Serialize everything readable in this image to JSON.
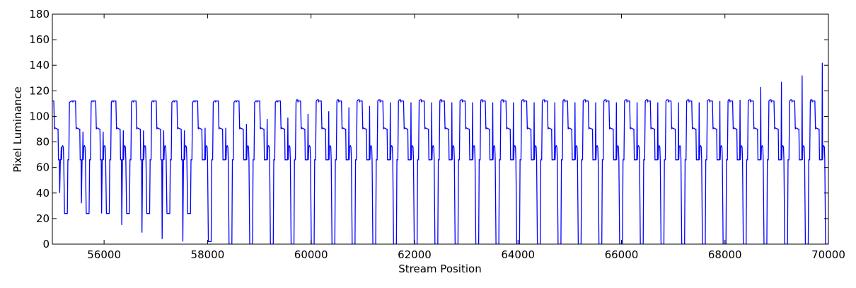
{
  "chart_data": {
    "type": "line",
    "title": "",
    "xlabel": "Stream Position",
    "ylabel": "Pixel Luminance",
    "xlim": [
      55000,
      70000
    ],
    "ylim": [
      0,
      180
    ],
    "x_ticks": [
      56000,
      58000,
      60000,
      62000,
      64000,
      66000,
      68000,
      70000
    ],
    "x_tick_labels": [
      "56000",
      "58000",
      "60000",
      "62000",
      "64000",
      "66000",
      "68000",
      "70000"
    ],
    "y_ticks": [
      0,
      20,
      40,
      60,
      80,
      100,
      120,
      140,
      160,
      180
    ],
    "y_tick_labels": [
      "0",
      "20",
      "40",
      "60",
      "80",
      "100",
      "120",
      "140",
      "160",
      "180"
    ],
    "grid": false,
    "legend": "none",
    "line_color": "#0000ff",
    "series": [
      {
        "cycle_start_x": [
          54950,
          55370,
          55760,
          56150,
          56540,
          56930,
          57330,
          57730,
          58130,
          58530,
          58930,
          59330,
          59720,
          60120,
          60510,
          60910,
          61310,
          61710,
          62110,
          62500,
          62900,
          63290,
          63690,
          64090,
          64490,
          64880,
          65280,
          65680,
          66080,
          66480,
          66880,
          67280,
          67680,
          68070,
          68470,
          68870,
          69270,
          69660
        ],
        "cycle_min": [
          24,
          24,
          24,
          24,
          24,
          24,
          24,
          2,
          0,
          0,
          0,
          0,
          0,
          0,
          0,
          0,
          0,
          0,
          0,
          0,
          0,
          0,
          0,
          0,
          0,
          0,
          0,
          0,
          0,
          0,
          0,
          0,
          0,
          0,
          0,
          0,
          0,
          0
        ],
        "cycle_peak": [
          76,
          88,
          88,
          89,
          89,
          89,
          89,
          91,
          91,
          94,
          98,
          99,
          102,
          104,
          107,
          108,
          111,
          111,
          111,
          111,
          111,
          111,
          111,
          111,
          111,
          111,
          111,
          111,
          111,
          111,
          111,
          111,
          112,
          113,
          123,
          127,
          132,
          142
        ],
        "cycle_top": [
          112,
          112,
          112,
          112,
          112,
          112,
          112,
          112,
          112,
          112,
          112,
          112,
          113,
          113,
          113,
          113,
          113,
          113,
          113,
          113,
          113,
          113,
          113,
          113,
          113,
          113,
          113,
          113,
          113,
          113,
          113,
          113,
          113,
          113,
          113,
          113,
          113,
          113
        ],
        "cycle_dip": [
          40,
          32,
          24,
          15,
          9,
          4,
          2,
          0,
          0,
          0,
          0,
          0,
          0,
          0,
          0,
          0,
          0,
          0,
          0,
          0,
          0,
          0,
          0,
          0,
          0,
          0,
          0,
          0,
          0,
          0,
          0,
          0,
          0,
          0,
          0,
          0,
          0,
          0
        ],
        "final_peak": 147,
        "plateau_values": [
          90,
          66,
          76
        ]
      }
    ]
  }
}
